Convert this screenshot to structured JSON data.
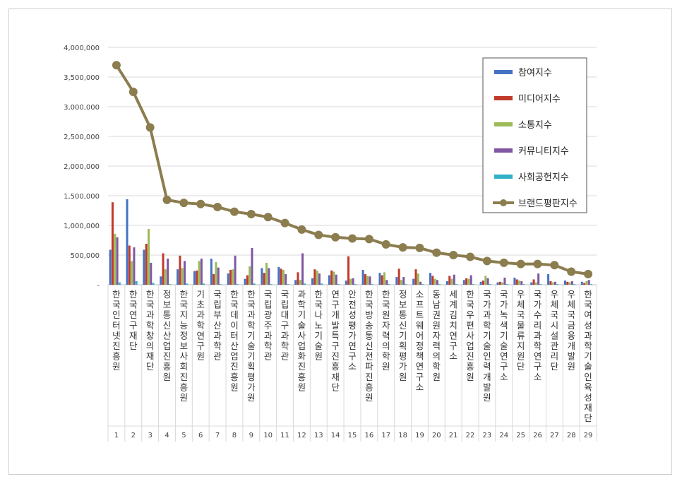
{
  "chart_data": {
    "type": "bar",
    "categories": [
      "한국인터넷진흥원",
      "한국연구재단",
      "한국과학창의재단",
      "정보통신산업진흥원",
      "한국지능정보사회진흥원",
      "기초과학연구원",
      "국립부산과학관",
      "한국데이터산업진흥원",
      "한국과학기술기획평가원",
      "국립광주과학관",
      "국립대구과학관",
      "과학기술사업화진흥원",
      "한국나노기술원",
      "연구개발특구진흥재단",
      "안전성평가연구소",
      "한국방송통신전파진흥원",
      "한국원자력의학원",
      "정보통신기획평가원",
      "소프트웨어정책연구소",
      "동남권원자력의학원",
      "세계김치연구소",
      "한국우편사업진흥원",
      "국가과학기술인력개발원",
      "국가녹색기술연구소",
      "우체국물류지원단",
      "국가수리과학연구소",
      "우체국시설관리단",
      "우체국금융개발원",
      "한국여성과학기술인육성재단"
    ],
    "ranks": [
      "1",
      "2",
      "3",
      "4",
      "5",
      "6",
      "7",
      "8",
      "9",
      "10",
      "11",
      "12",
      "13",
      "14",
      "15",
      "16",
      "17",
      "18",
      "19",
      "20",
      "21",
      "22",
      "23",
      "24",
      "25",
      "26",
      "27",
      "28",
      "29"
    ],
    "series": [
      {
        "name": "참여지수",
        "color": "#4472c4",
        "values": [
          590000,
          1440000,
          590000,
          140000,
          260000,
          230000,
          440000,
          190000,
          100000,
          280000,
          300000,
          80000,
          110000,
          160000,
          70000,
          250000,
          200000,
          130000,
          100000,
          200000,
          60000,
          80000,
          50000,
          40000,
          120000,
          40000,
          180000,
          70000,
          50000
        ]
      },
      {
        "name": "미디어지수",
        "color": "#c0392b",
        "values": [
          1390000,
          660000,
          690000,
          530000,
          490000,
          240000,
          180000,
          250000,
          160000,
          200000,
          270000,
          210000,
          260000,
          240000,
          480000,
          180000,
          160000,
          270000,
          260000,
          150000,
          150000,
          110000,
          70000,
          50000,
          90000,
          90000,
          60000,
          50000,
          30000
        ]
      },
      {
        "name": "소통지수",
        "color": "#9bbb59",
        "values": [
          860000,
          400000,
          940000,
          260000,
          280000,
          400000,
          380000,
          260000,
          310000,
          370000,
          250000,
          80000,
          240000,
          220000,
          100000,
          150000,
          210000,
          80000,
          190000,
          100000,
          100000,
          100000,
          150000,
          40000,
          70000,
          40000,
          40000,
          40000,
          60000
        ]
      },
      {
        "name": "커뮤니티지수",
        "color": "#7e56a2",
        "values": [
          800000,
          630000,
          370000,
          440000,
          400000,
          440000,
          290000,
          490000,
          620000,
          280000,
          180000,
          530000,
          190000,
          170000,
          110000,
          140000,
          80000,
          130000,
          50000,
          80000,
          170000,
          160000,
          110000,
          120000,
          60000,
          190000,
          50000,
          60000,
          80000
        ]
      },
      {
        "name": "사회공헌지수",
        "color": "#31b0c6",
        "values": [
          40000,
          60000,
          30000,
          10000,
          20000,
          20000,
          10000,
          10000,
          20000,
          10000,
          10000,
          20000,
          20000,
          10000,
          10000,
          10000,
          10000,
          10000,
          10000,
          10000,
          10000,
          10000,
          10000,
          10000,
          10000,
          10000,
          10000,
          10000,
          10000
        ]
      },
      {
        "name": "브랜드평판지수",
        "color": "#8c7d4f",
        "type": "line",
        "values": [
          3700000,
          3250000,
          2650000,
          1430000,
          1380000,
          1360000,
          1310000,
          1230000,
          1190000,
          1140000,
          1040000,
          930000,
          840000,
          800000,
          780000,
          770000,
          680000,
          630000,
          620000,
          540000,
          500000,
          470000,
          400000,
          370000,
          350000,
          350000,
          330000,
          220000,
          180000
        ]
      }
    ],
    "y_ticks": [
      "-",
      "500,000",
      "1,000,000",
      "1,500,000",
      "2,000,000",
      "2,500,000",
      "3,000,000",
      "3,500,000",
      "4,000,000"
    ],
    "ylim": [
      0,
      4000000
    ],
    "grid": true,
    "legend_position": "top-right"
  }
}
